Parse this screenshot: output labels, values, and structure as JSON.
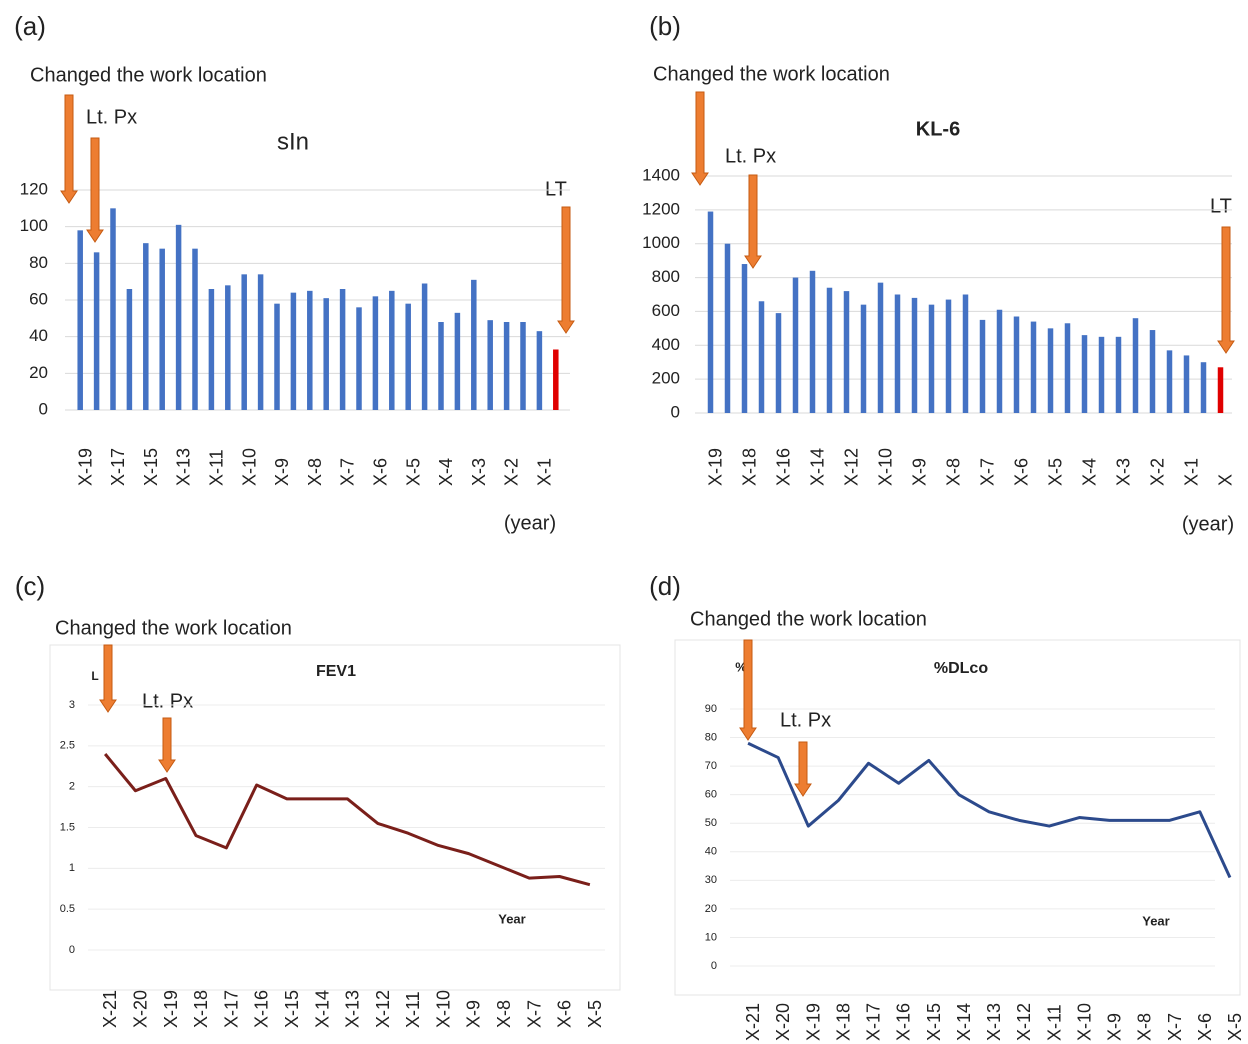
{
  "chart_data": [
    {
      "type": "bar",
      "panel_label": "(a)",
      "title": "sIn",
      "xlabel": "(year)",
      "annotations": [
        "Changed the work location",
        "Lt. Px",
        "LT"
      ],
      "categories": [
        "X-19",
        null,
        "X-17",
        null,
        "X-15",
        null,
        "X-13",
        null,
        "X-11",
        null,
        "X-10",
        null,
        "X-9",
        null,
        "X-8",
        null,
        "X-7",
        null,
        "X-6",
        null,
        "X-5",
        null,
        "X-4",
        null,
        "X-3",
        null,
        "X-2",
        null,
        "X-1",
        null
      ],
      "values": [
        98,
        86,
        110,
        66,
        91,
        88,
        101,
        88,
        66,
        68,
        74,
        74,
        58,
        64,
        65,
        61,
        66,
        56,
        62,
        65,
        58,
        69,
        48,
        53,
        71,
        49,
        48,
        48,
        43,
        33
      ],
      "colors": [
        "#4472c4",
        "#4472c4",
        "#4472c4",
        "#4472c4",
        "#4472c4",
        "#4472c4",
        "#4472c4",
        "#4472c4",
        "#4472c4",
        "#4472c4",
        "#4472c4",
        "#4472c4",
        "#4472c4",
        "#4472c4",
        "#4472c4",
        "#4472c4",
        "#4472c4",
        "#4472c4",
        "#4472c4",
        "#4472c4",
        "#4472c4",
        "#4472c4",
        "#4472c4",
        "#4472c4",
        "#4472c4",
        "#4472c4",
        "#4472c4",
        "#4472c4",
        "#4472c4",
        "#e00000"
      ],
      "ylim": [
        0,
        120
      ],
      "yticks": [
        0,
        20,
        40,
        60,
        80,
        100,
        120
      ],
      "grid": true
    },
    {
      "type": "bar",
      "panel_label": "(b)",
      "title": "KL-6",
      "xlabel": "(year)",
      "annotations": [
        "Changed the work location",
        "Lt. Px",
        "LT"
      ],
      "categories": [
        "X-19",
        null,
        "X-18",
        null,
        "X-16",
        null,
        "X-14",
        null,
        "X-12",
        null,
        "X-10",
        null,
        "X-9",
        null,
        "X-8",
        null,
        "X-7",
        null,
        "X-6",
        null,
        "X-5",
        null,
        "X-4",
        null,
        "X-3",
        null,
        "X-2",
        null,
        "X-1",
        null,
        "X"
      ],
      "values": [
        1190,
        1000,
        880,
        660,
        590,
        800,
        840,
        740,
        720,
        640,
        770,
        700,
        680,
        640,
        670,
        700,
        550,
        610,
        570,
        540,
        500,
        530,
        460,
        450,
        450,
        560,
        490,
        370,
        340,
        300,
        270
      ],
      "colors": [
        "#4472c4",
        "#4472c4",
        "#4472c4",
        "#4472c4",
        "#4472c4",
        "#4472c4",
        "#4472c4",
        "#4472c4",
        "#4472c4",
        "#4472c4",
        "#4472c4",
        "#4472c4",
        "#4472c4",
        "#4472c4",
        "#4472c4",
        "#4472c4",
        "#4472c4",
        "#4472c4",
        "#4472c4",
        "#4472c4",
        "#4472c4",
        "#4472c4",
        "#4472c4",
        "#4472c4",
        "#4472c4",
        "#4472c4",
        "#4472c4",
        "#4472c4",
        "#4472c4",
        "#4472c4",
        "#e00000"
      ],
      "ylim": [
        0,
        1400
      ],
      "yticks": [
        0,
        200,
        400,
        600,
        800,
        1000,
        1200,
        1400
      ],
      "grid": true
    },
    {
      "type": "line",
      "panel_label": "(c)",
      "title": "FEV1",
      "xlabel": "Year",
      "ylabel": "L",
      "annotations": [
        "Changed the work location",
        "Lt. Px"
      ],
      "categories": [
        "X-21",
        "X-20",
        "X-19",
        "X-18",
        "X-17",
        "X-16",
        "X-15",
        "X-14",
        "X-13",
        "X-12",
        "X-11",
        "X-10",
        "X-9",
        "X-8",
        "X-7",
        "X-6",
        "X-5"
      ],
      "values": [
        2.4,
        1.95,
        2.1,
        1.4,
        1.25,
        2.02,
        1.85,
        1.85,
        1.85,
        1.55,
        1.43,
        1.28,
        1.18,
        1.03,
        0.88,
        0.9,
        0.8
      ],
      "color": "#7a1f1a",
      "ylim": [
        0,
        3
      ],
      "yticks": [
        0,
        0.5,
        1,
        1.5,
        2,
        2.5,
        3
      ],
      "grid": true
    },
    {
      "type": "line",
      "panel_label": "(d)",
      "title": "%DLco",
      "xlabel": "Year",
      "ylabel": "%",
      "annotations": [
        "Changed the work location",
        "Lt. Px"
      ],
      "categories": [
        "X-21",
        "X-20",
        "X-19",
        "X-18",
        "X-17",
        "X-16",
        "X-15",
        "X-14",
        "X-13",
        "X-12",
        "X-11",
        "X-10",
        "X-9",
        "X-8",
        "X-7",
        "X-6",
        "X-5"
      ],
      "values": [
        78,
        73,
        49,
        58,
        71,
        64,
        72,
        60,
        54,
        51,
        49,
        52,
        51,
        51,
        51,
        54,
        31
      ],
      "color": "#2c4a8c",
      "ylim": [
        0,
        90
      ],
      "yticks": [
        0,
        10,
        20,
        30,
        40,
        50,
        60,
        70,
        80,
        90
      ],
      "grid": true
    }
  ]
}
